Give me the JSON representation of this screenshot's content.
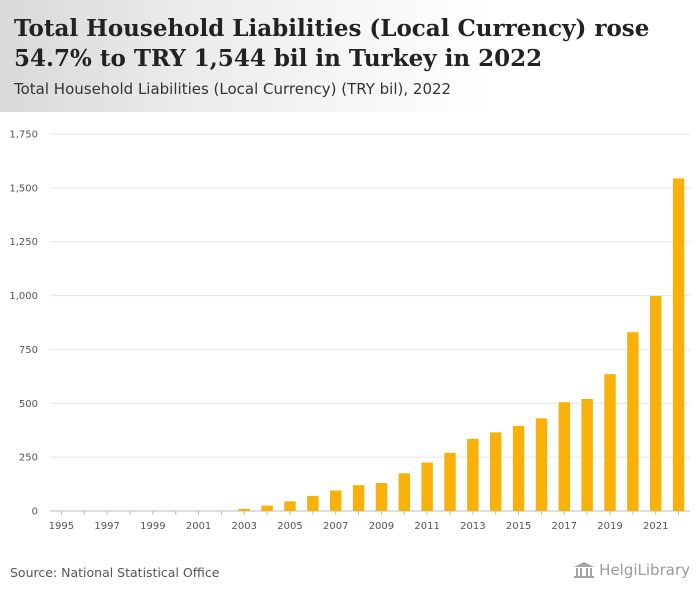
{
  "header": {
    "title": "Total Household Liabilities (Local Currency) rose 54.7% to TRY 1,544 bil in Turkey in 2022",
    "subtitle": "Total Household Liabilities (Local Currency) (TRY bil), 2022"
  },
  "footer": {
    "source": "Source: National Statistical Office",
    "logo_text": "HelgiLibrary"
  },
  "colors": {
    "bar": "#f7b10a",
    "grid": "#e6e6e6",
    "axis": "#bdbdbd",
    "text": "#555555"
  },
  "chart_data": {
    "type": "bar",
    "title": "Total Household Liabilities (Local Currency) (TRY bil), 2022",
    "xlabel": "",
    "ylabel": "TRY bil",
    "ylim": [
      0,
      1750
    ],
    "yticks": [
      0,
      250,
      500,
      750,
      1000,
      1250,
      1500,
      1750
    ],
    "ytick_labels": [
      "0",
      "250",
      "500",
      "750",
      "1,000",
      "1,250",
      "1,500",
      "1,750"
    ],
    "categories": [
      "1995",
      "1996",
      "1997",
      "1998",
      "1999",
      "2000",
      "2001",
      "2002",
      "2003",
      "2004",
      "2005",
      "2006",
      "2007",
      "2008",
      "2009",
      "2010",
      "2011",
      "2012",
      "2013",
      "2014",
      "2015",
      "2016",
      "2017",
      "2018",
      "2019",
      "2020",
      "2021",
      "2022"
    ],
    "xtick_labels": [
      "1995",
      "1997",
      "1999",
      "2001",
      "2003",
      "2005",
      "2007",
      "2009",
      "2011",
      "2013",
      "2015",
      "2017",
      "2019",
      "2021"
    ],
    "values": [
      0,
      0,
      0,
      0,
      0,
      0,
      0,
      0,
      10,
      25,
      45,
      70,
      95,
      120,
      130,
      175,
      225,
      270,
      335,
      365,
      395,
      430,
      505,
      520,
      635,
      830,
      998,
      1544
    ],
    "grid": true,
    "legend": "none"
  }
}
